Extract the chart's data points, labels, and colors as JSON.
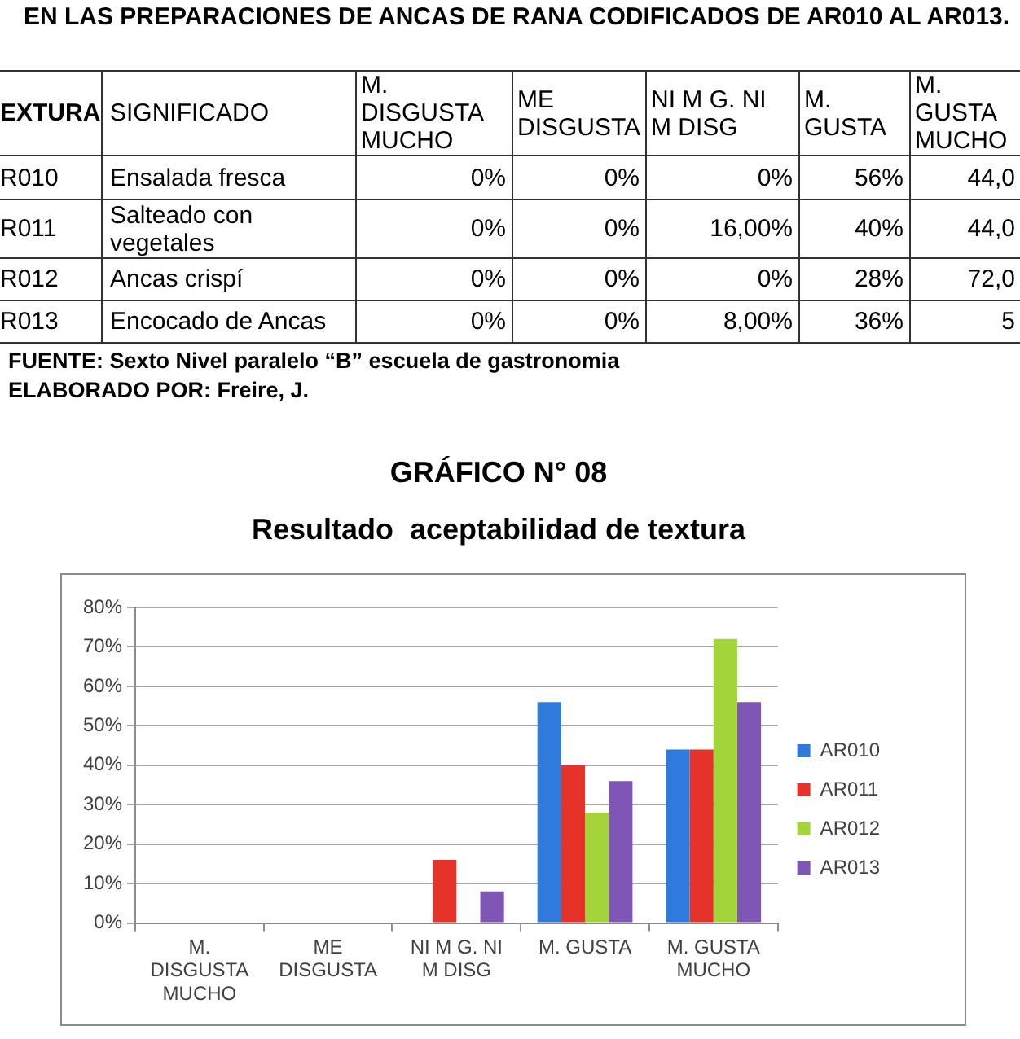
{
  "chart_data": [
    {
      "type": "other",
      "title": "EN LAS PREPARACIONES DE ANCAS DE RANA CODIFICADOS DE AR010 AL AR013.",
      "categories": [
        "EXTURA",
        "SIGNIFICADO",
        "M. DISGUSTA MUCHO",
        "ME DISGUSTA",
        "NI M G. NI M DISG",
        "M. GUSTA",
        "M. GUSTA MUCHO"
      ],
      "y_categories": [
        "R010",
        "R011",
        "R012",
        "R013"
      ],
      "y2_categories": [
        "Ensalada fresca",
        "Salteado con vegetales",
        "Ancas crispí",
        "Encocado de Ancas"
      ],
      "cell_labels": [
        [
          "0%",
          "0%",
          "0%",
          "56%",
          "44,0"
        ],
        [
          "0%",
          "0%",
          "16,00%",
          "40%",
          "44,0"
        ],
        [
          "0%",
          "0%",
          "0%",
          "28%",
          "72,0"
        ],
        [
          "0%",
          "0%",
          "8,00%",
          "36%",
          "5"
        ]
      ],
      "annotations": [
        "FUENTE: Sexto Nivel paralelo “B” escuela de gastronomia",
        "ELABORADO POR: Freire, J."
      ]
    },
    {
      "type": "bar",
      "title": "GRÁFICO N° 08",
      "subtitle": "Resultado  aceptabilidad de textura",
      "categories": [
        "M. DISGUSTA MUCHO",
        "ME DISGUSTA",
        "NI M G. NI M DISG",
        "M. GUSTA",
        "M. GUSTA MUCHO"
      ],
      "series": [
        {
          "name": "AR010",
          "color": "#2e7bdc",
          "values": [
            0,
            0,
            0,
            56,
            44
          ]
        },
        {
          "name": "AR011",
          "color": "#e63329",
          "values": [
            0,
            0,
            16,
            40,
            44
          ]
        },
        {
          "name": "AR012",
          "color": "#a3d53a",
          "values": [
            0,
            0,
            0,
            28,
            72
          ]
        },
        {
          "name": "AR013",
          "color": "#7f55b5",
          "values": [
            0,
            0,
            8,
            36,
            56
          ]
        }
      ],
      "ylim": [
        0,
        80
      ],
      "yticks": [
        {
          "value": 0,
          "label": "0%"
        },
        {
          "value": 10,
          "label": "10%"
        },
        {
          "value": 20,
          "label": "20%"
        },
        {
          "value": 30,
          "label": "30%"
        },
        {
          "value": 40,
          "label": "40%"
        },
        {
          "value": 50,
          "label": "50%"
        },
        {
          "value": 60,
          "label": "60%"
        },
        {
          "value": 70,
          "label": "70%"
        },
        {
          "value": 80,
          "label": "80%"
        }
      ],
      "grid": "y",
      "legend": "right"
    }
  ]
}
